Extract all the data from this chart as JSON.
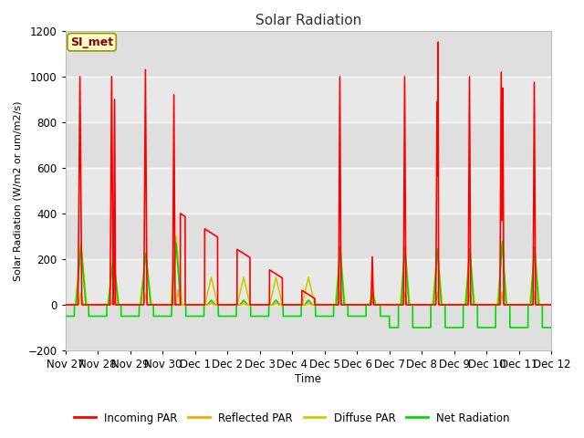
{
  "title": "Solar Radiation",
  "ylabel": "Solar Radiation (W/m2 or um/m2/s)",
  "xlabel": "Time",
  "ylim": [
    -200,
    1200
  ],
  "fig_bg": "#f0f0f0",
  "plot_bg": "#e8e8e8",
  "grid_color": "white",
  "annotation_text": "SI_met",
  "annotation_color": "#8B0000",
  "annotation_bg": "#ffffcc",
  "annotation_border": "#999900",
  "legend_entries": [
    "Incoming PAR",
    "Reflected PAR",
    "Diffuse PAR",
    "Net Radiation"
  ],
  "line_colors": [
    "red",
    "orange",
    "#cccc00",
    "#00dd00"
  ],
  "x_tick_labels": [
    "Nov 27",
    "Nov 28",
    "Nov 29",
    "Nov 30",
    "Dec 1",
    "Dec 2",
    "Dec 3",
    "Dec 4",
    "Dec 5",
    "Dec 6",
    "Dec 7",
    "Dec 8",
    "Dec 9",
    "Dec 10",
    "Dec 11",
    "Dec 12"
  ],
  "n_days": 15,
  "pts_per_day": 288
}
